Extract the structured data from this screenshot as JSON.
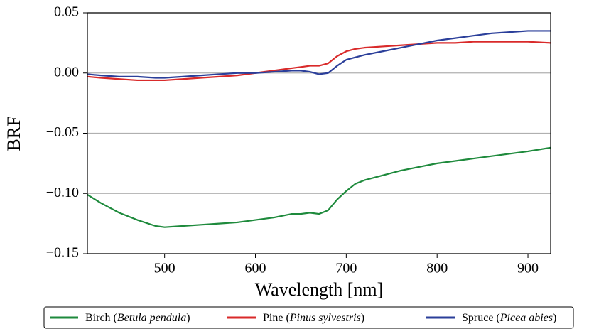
{
  "chart_data": {
    "type": "line",
    "x_label": "Wavelength [nm]",
    "y_label": "BRF",
    "x": [
      415,
      430,
      450,
      470,
      490,
      500,
      520,
      540,
      560,
      580,
      600,
      620,
      640,
      650,
      660,
      670,
      680,
      690,
      700,
      710,
      720,
      740,
      760,
      780,
      800,
      820,
      840,
      860,
      880,
      900,
      925
    ],
    "series": [
      {
        "name": "Birch (Betula pendula)",
        "color": "#1e8a3c",
        "values": [
          -0.101,
          -0.108,
          -0.116,
          -0.122,
          -0.127,
          -0.128,
          -0.127,
          -0.126,
          -0.125,
          -0.124,
          -0.122,
          -0.12,
          -0.117,
          -0.117,
          -0.116,
          -0.117,
          -0.114,
          -0.105,
          -0.098,
          -0.092,
          -0.089,
          -0.085,
          -0.081,
          -0.078,
          -0.075,
          -0.073,
          -0.071,
          -0.069,
          -0.067,
          -0.065,
          -0.062
        ]
      },
      {
        "name": "Pine (Pinus sylvestris)",
        "color": "#d92a2a",
        "values": [
          -0.003,
          -0.004,
          -0.005,
          -0.006,
          -0.006,
          -0.006,
          -0.005,
          -0.004,
          -0.003,
          -0.002,
          0.0,
          0.002,
          0.004,
          0.005,
          0.006,
          0.006,
          0.008,
          0.014,
          0.018,
          0.02,
          0.021,
          0.022,
          0.023,
          0.024,
          0.025,
          0.025,
          0.026,
          0.026,
          0.026,
          0.026,
          0.025
        ]
      },
      {
        "name": "Spruce (Picea abies)",
        "color": "#2b3f9a",
        "values": [
          -0.001,
          -0.002,
          -0.003,
          -0.003,
          -0.004,
          -0.004,
          -0.003,
          -0.002,
          -0.001,
          0.0,
          0.0,
          0.001,
          0.002,
          0.002,
          0.001,
          -0.001,
          0.0,
          0.006,
          0.011,
          0.013,
          0.015,
          0.018,
          0.021,
          0.024,
          0.027,
          0.029,
          0.031,
          0.033,
          0.034,
          0.035,
          0.035
        ]
      }
    ],
    "xlim": [
      415,
      925
    ],
    "ylim": [
      -0.15,
      0.05
    ],
    "xticks": [
      500,
      600,
      700,
      800,
      900
    ],
    "yticks": [
      {
        "value": -0.15,
        "label": "−0.15"
      },
      {
        "value": -0.1,
        "label": "−0.10"
      },
      {
        "value": -0.05,
        "label": "−0.05"
      },
      {
        "value": 0,
        "label": "0.00"
      },
      0.05
    ],
    "grid": "y",
    "legend": "bottom"
  }
}
